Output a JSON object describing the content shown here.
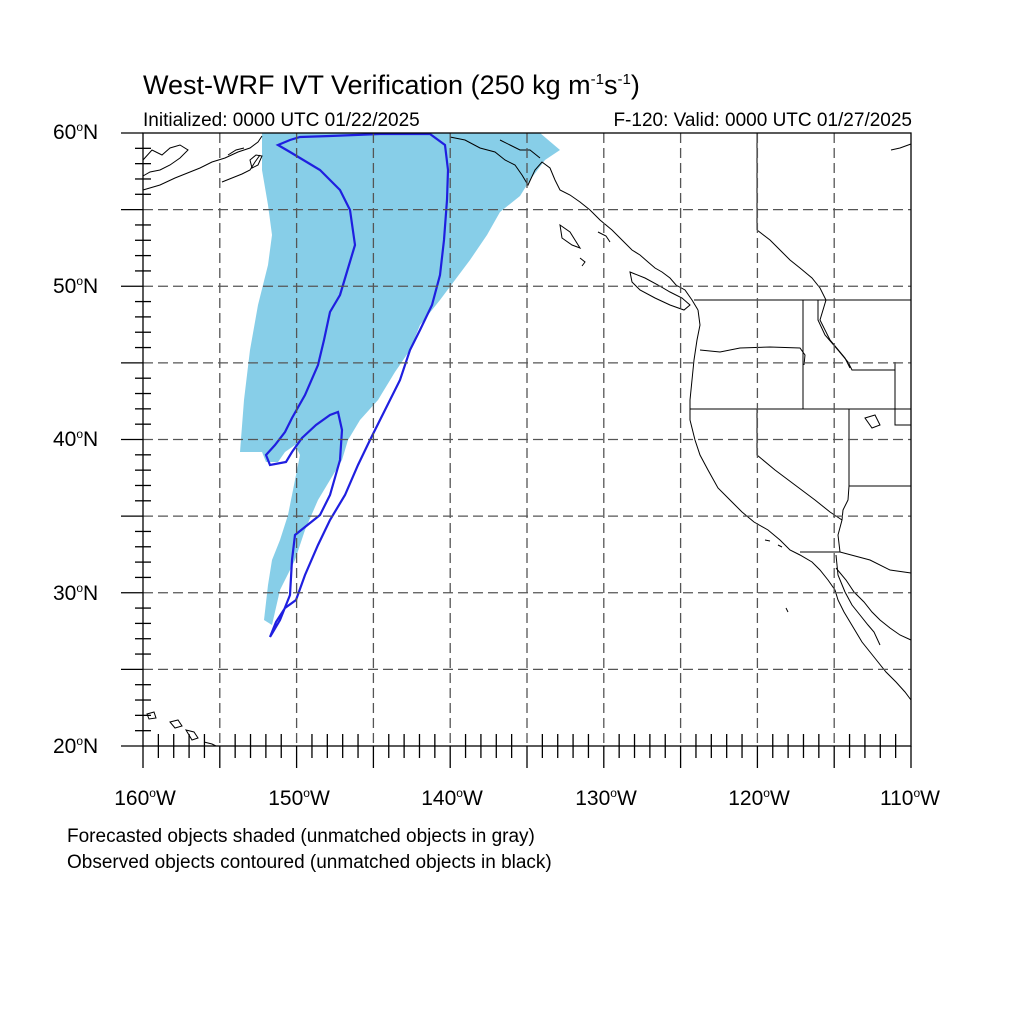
{
  "title": {
    "prefix": "West-WRF IVT Verification (250 kg m",
    "exp1": "-1",
    "middle": "s",
    "exp2": "-1",
    "suffix": ")"
  },
  "subtitle_left": "Initialized: 0000 UTC 01/22/2025",
  "subtitle_right": "F-120: Valid: 0000 UTC 01/27/2025",
  "lat_labels": [
    {
      "num": "60",
      "deg": "o",
      "hemi": "N"
    },
    {
      "num": "50",
      "deg": "o",
      "hemi": "N"
    },
    {
      "num": "40",
      "deg": "o",
      "hemi": "N"
    },
    {
      "num": "30",
      "deg": "o",
      "hemi": "N"
    },
    {
      "num": "20",
      "deg": "o",
      "hemi": "N"
    }
  ],
  "lon_labels": [
    {
      "num": "160",
      "deg": "o",
      "hemi": "W"
    },
    {
      "num": "150",
      "deg": "o",
      "hemi": "W"
    },
    {
      "num": "140",
      "deg": "o",
      "hemi": "W"
    },
    {
      "num": "130",
      "deg": "o",
      "hemi": "W"
    },
    {
      "num": "120",
      "deg": "o",
      "hemi": "W"
    },
    {
      "num": "110",
      "deg": "o",
      "hemi": "W"
    }
  ],
  "notes": [
    "Forecasted objects shaded (unmatched objects in gray)",
    "Observed objects contoured (unmatched objects in black)"
  ],
  "colors": {
    "forecast_fill": "#87cee8",
    "observed_contour": "#1f1fe0",
    "coastline": "#000000",
    "grid": "#555555"
  },
  "map_extent": {
    "lon_min": -160,
    "lon_max": -110,
    "lat_min": 20,
    "lat_max": 60
  }
}
